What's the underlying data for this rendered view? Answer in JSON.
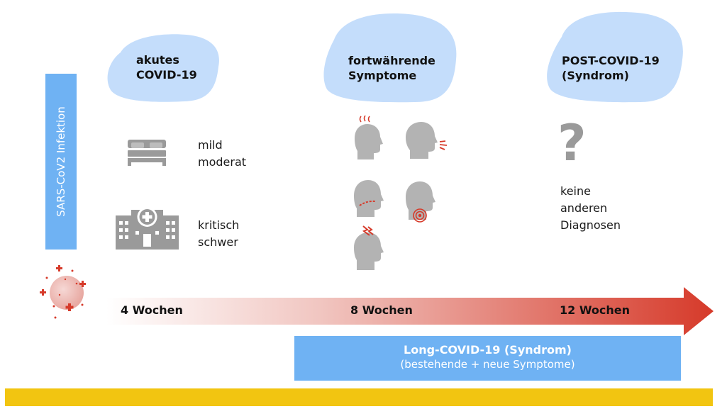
{
  "clouds": [
    {
      "line1": "akutes",
      "line2": "COVID-19"
    },
    {
      "line1": "fortwährende",
      "line2": "Symptome"
    },
    {
      "line1": "POST-COVID-19",
      "line2": "(Syndrom)"
    }
  ],
  "infection_label": "SARS-CoV2 Infektion",
  "acute": {
    "mild_line1": "mild",
    "mild_line2": "moderat",
    "severe_line1": "kritisch",
    "severe_line2": "schwer"
  },
  "post": {
    "question": "?",
    "line1": "keine",
    "line2": "anderen",
    "line3": "Diagnosen"
  },
  "timeline": {
    "week4": "4 Wochen",
    "week8": "8 Wochen",
    "week12": "12 Wochen"
  },
  "long_covid": {
    "title": "Long-COVID-19 (Syndrom)",
    "subtitle": "(bestehende + neue Symptome)"
  },
  "colors": {
    "cloud": "#c4ddfb",
    "bar_blue": "#6fb2f3",
    "arrow_red": "#d63a2a",
    "icon_gray": "#9a9a9a",
    "yellow": "#f2c511"
  }
}
